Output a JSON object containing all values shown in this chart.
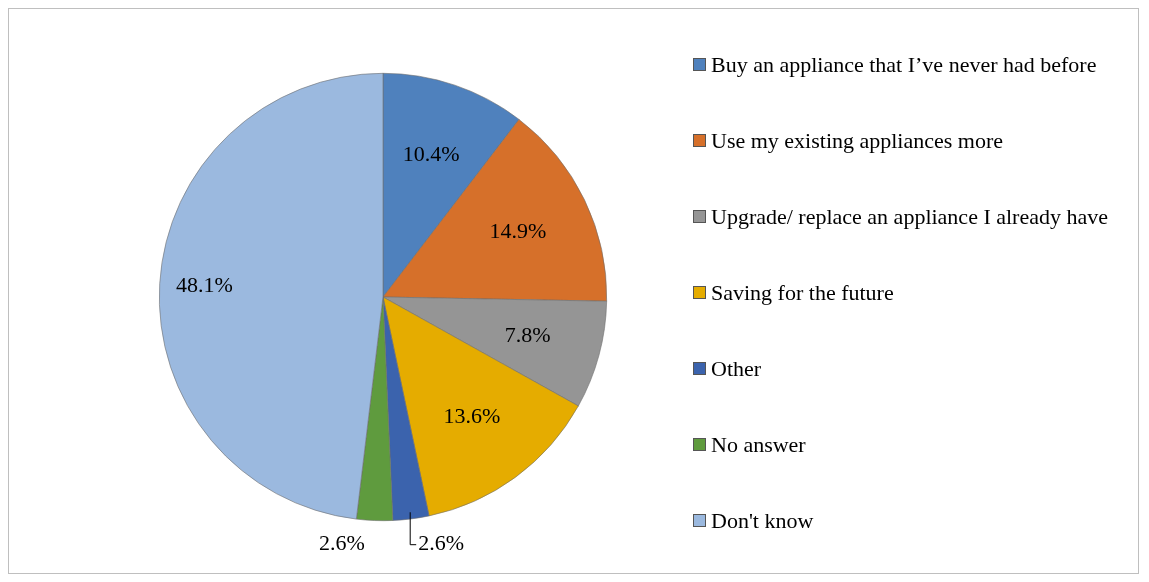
{
  "chart_data": {
    "type": "pie",
    "categories": [
      "Buy an appliance that I’ve never had before",
      "Use my existing appliances more",
      "Upgrade/ replace an appliance I already have",
      "Saving for the future",
      "Other",
      "No answer",
      "Don't know"
    ],
    "values": [
      10.4,
      14.9,
      7.8,
      13.6,
      2.6,
      2.6,
      48.1
    ],
    "colors": [
      "#4f81bd",
      "#d6702a",
      "#959595",
      "#e5ac00",
      "#3b63ad",
      "#5f9b3e",
      "#9bb9df"
    ],
    "value_labels": [
      "10.4%",
      "14.9%",
      "7.8%",
      "13.6%",
      "2.6%",
      "2.6%",
      "48.1%"
    ],
    "legend": "right"
  }
}
